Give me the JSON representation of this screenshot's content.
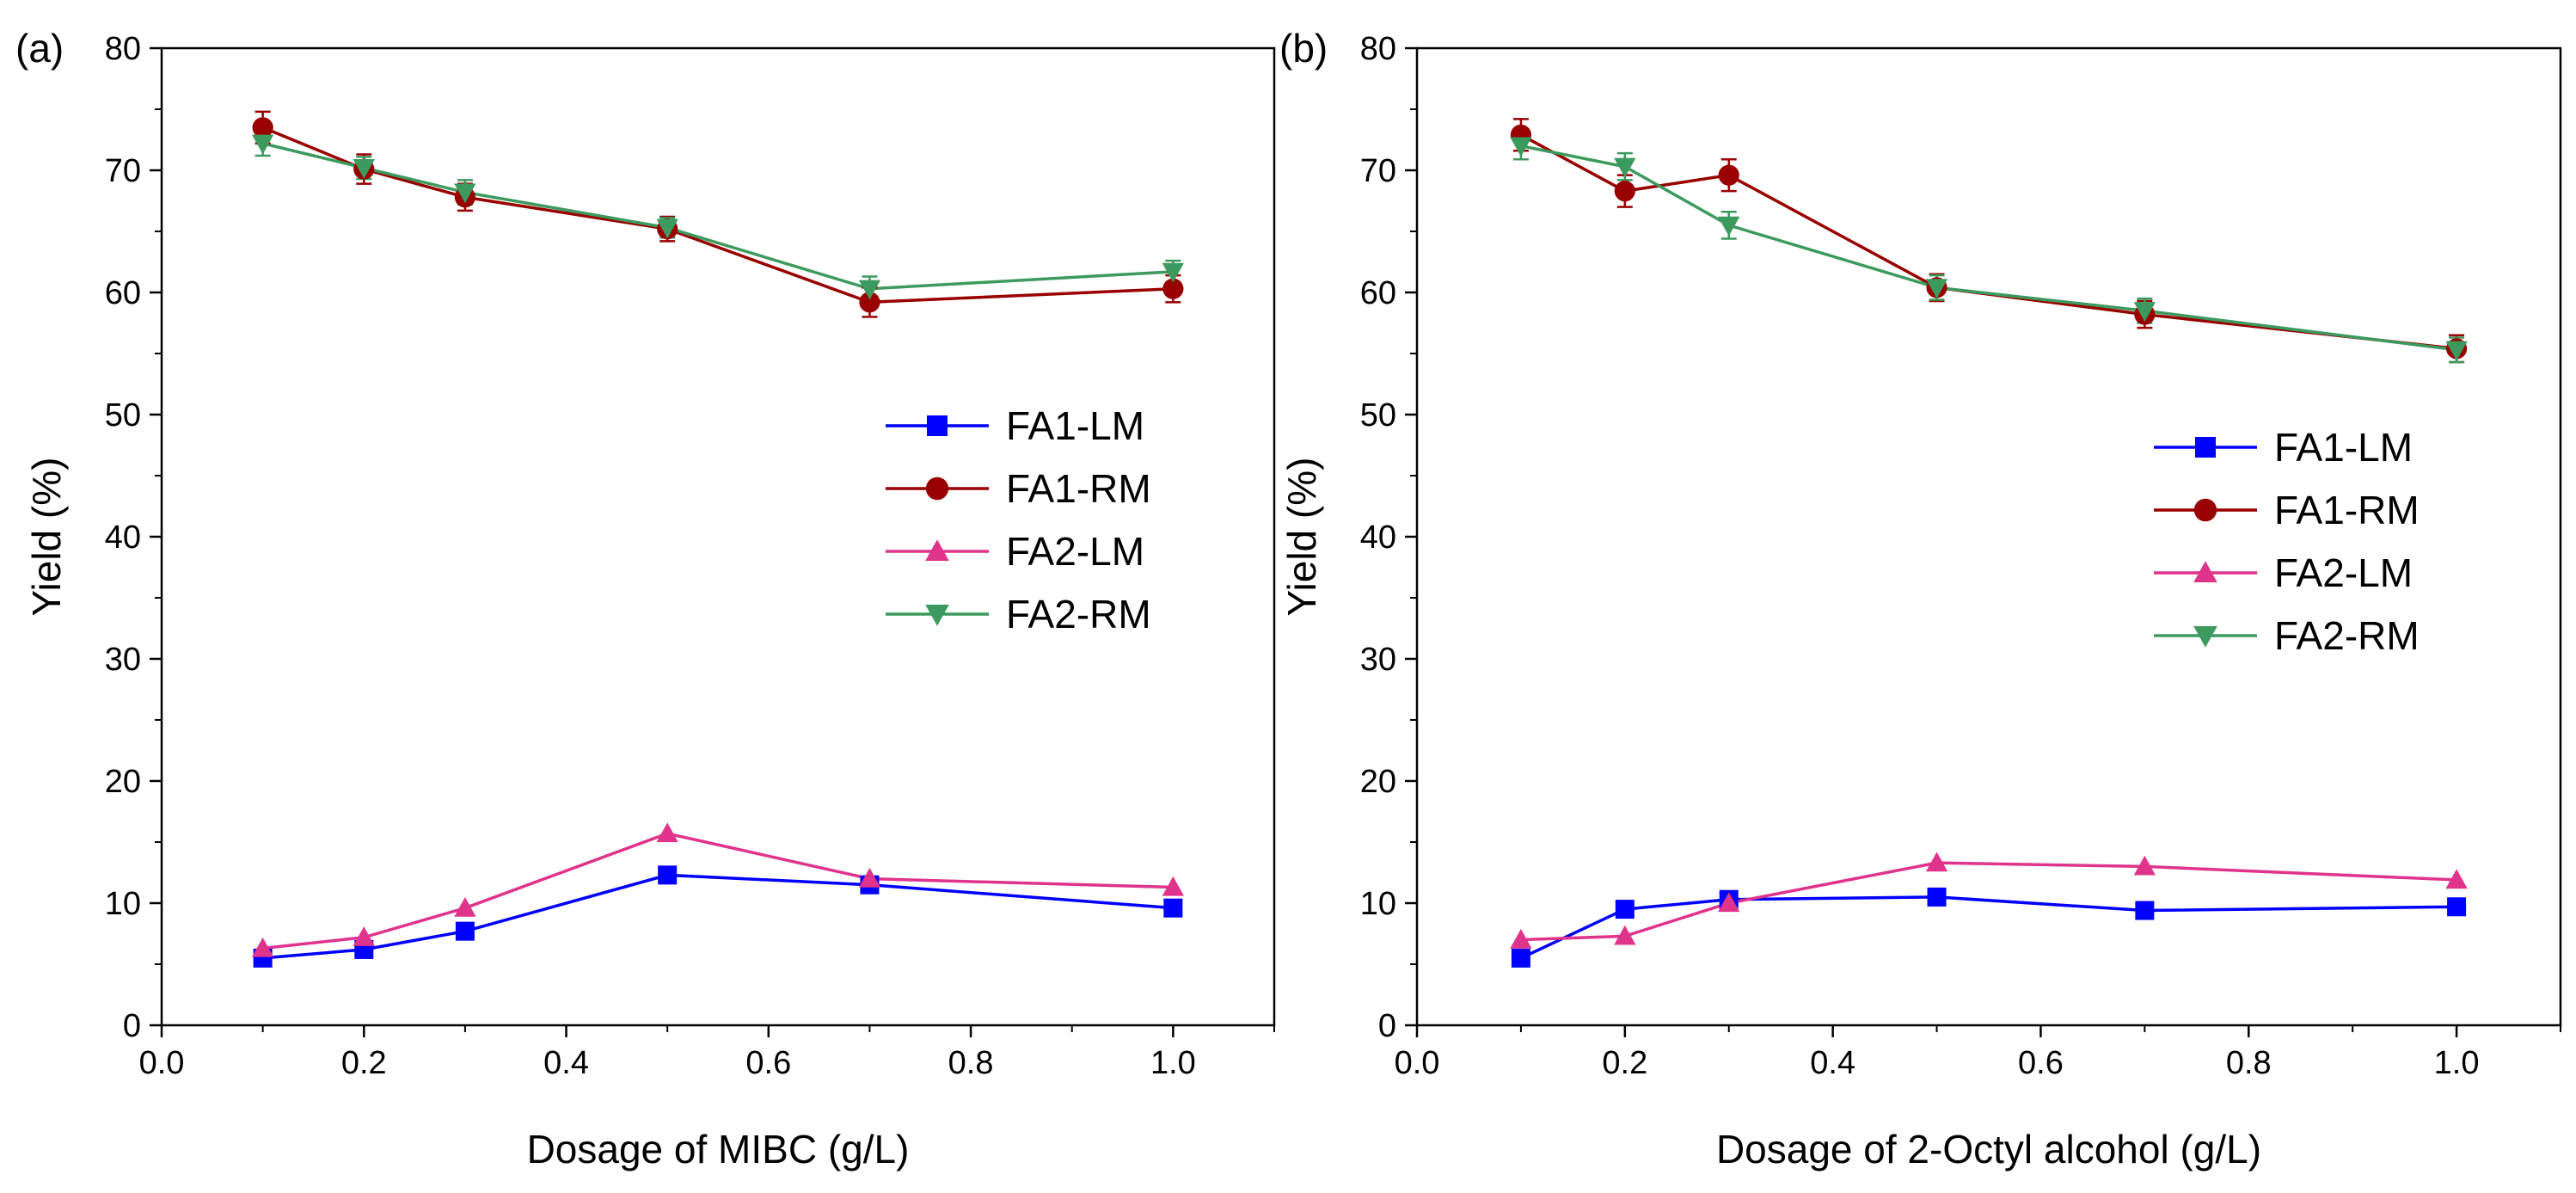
{
  "chart_data": [
    {
      "type": "line",
      "panel_label": "(a)",
      "xlabel": "Dosage of MIBC (g/L)",
      "ylabel": "Yield (%)",
      "xlim": [
        0.0,
        1.1
      ],
      "ylim": [
        0,
        80
      ],
      "xticks": [
        0.0,
        0.2,
        0.4,
        0.6,
        0.8,
        1.0
      ],
      "xtick_labels": [
        "0.0",
        "0.2",
        "0.4",
        "0.6",
        "0.8",
        "1.0"
      ],
      "yticks": [
        0,
        10,
        20,
        30,
        40,
        50,
        60,
        70,
        80
      ],
      "ytick_labels": [
        "0",
        "10",
        "20",
        "30",
        "40",
        "50",
        "60",
        "70",
        "80"
      ],
      "legend_position": "center-right",
      "x": [
        0.1,
        0.2,
        0.3,
        0.5,
        0.7,
        1.0
      ],
      "series": [
        {
          "name": "FA1-LM",
          "marker": "square",
          "color": "#0000FF",
          "values": [
            5.5,
            6.2,
            7.7,
            12.3,
            11.5,
            9.6
          ],
          "errors": [
            0,
            0,
            0,
            0,
            0,
            0
          ]
        },
        {
          "name": "FA1-RM",
          "marker": "circle",
          "color": "#990000",
          "values": [
            73.5,
            70.1,
            67.8,
            65.2,
            59.2,
            60.3
          ],
          "errors": [
            1.3,
            1.2,
            1.1,
            1.0,
            1.2,
            1.1
          ]
        },
        {
          "name": "FA2-LM",
          "marker": "triangle-up",
          "color": "#E0338C",
          "values": [
            6.3,
            7.2,
            9.6,
            15.7,
            12.0,
            11.3
          ],
          "errors": [
            0,
            0,
            0,
            0,
            0,
            0
          ]
        },
        {
          "name": "FA2-RM",
          "marker": "triangle-down",
          "color": "#3D9A5E",
          "values": [
            72.2,
            70.2,
            68.2,
            65.3,
            60.3,
            61.7
          ],
          "errors": [
            1.0,
            0.9,
            1.0,
            0.8,
            1.0,
            0.9
          ]
        }
      ]
    },
    {
      "type": "line",
      "panel_label": "(b)",
      "xlabel": "Dosage of 2-Octyl alcohol (g/L)",
      "ylabel": "Yield (%)",
      "xlim": [
        0.0,
        1.1
      ],
      "ylim": [
        0,
        80
      ],
      "xticks": [
        0.0,
        0.2,
        0.4,
        0.6,
        0.8,
        1.0
      ],
      "xtick_labels": [
        "0.0",
        "0.2",
        "0.4",
        "0.6",
        "0.8",
        "1.0"
      ],
      "yticks": [
        0,
        10,
        20,
        30,
        40,
        50,
        60,
        70,
        80
      ],
      "ytick_labels": [
        "0",
        "10",
        "20",
        "30",
        "40",
        "50",
        "60",
        "70",
        "80"
      ],
      "legend_position": "center-right",
      "x": [
        0.1,
        0.2,
        0.3,
        0.5,
        0.7,
        1.0
      ],
      "series": [
        {
          "name": "FA1-LM",
          "marker": "square",
          "color": "#0000FF",
          "values": [
            5.5,
            9.5,
            10.3,
            10.5,
            9.4,
            9.7
          ],
          "errors": [
            0,
            0,
            0,
            0,
            0,
            0
          ]
        },
        {
          "name": "FA1-RM",
          "marker": "circle",
          "color": "#990000",
          "values": [
            72.9,
            68.3,
            69.6,
            60.4,
            58.2,
            55.4
          ],
          "errors": [
            1.3,
            1.3,
            1.3,
            1.1,
            1.1,
            1.1
          ]
        },
        {
          "name": "FA2-LM",
          "marker": "triangle-up",
          "color": "#E0338C",
          "values": [
            7.0,
            7.3,
            10.0,
            13.3,
            13.0,
            11.9
          ],
          "errors": [
            0,
            0,
            0,
            0,
            0,
            0
          ]
        },
        {
          "name": "FA2-RM",
          "marker": "triangle-down",
          "color": "#3D9A5E",
          "values": [
            72.0,
            70.3,
            65.5,
            60.4,
            58.5,
            55.3
          ],
          "errors": [
            1.1,
            1.1,
            1.1,
            1.0,
            1.0,
            1.0
          ]
        }
      ]
    }
  ]
}
